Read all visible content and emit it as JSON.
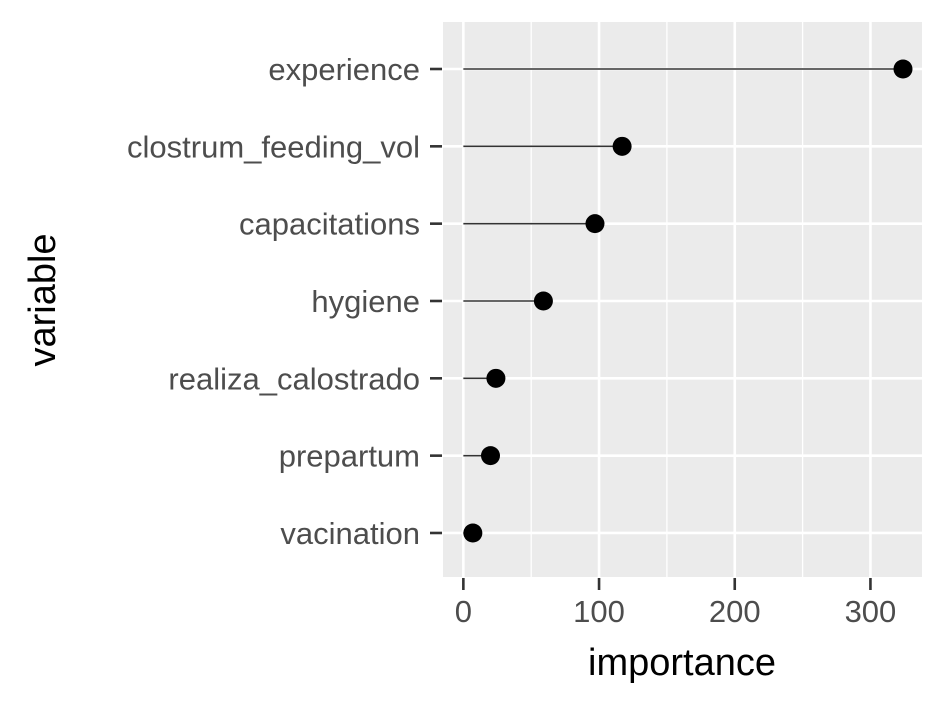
{
  "chart_data": {
    "type": "lollipop",
    "categories": [
      "experience",
      "clostrum_feeding_vol",
      "capacitations",
      "hygiene",
      "realiza_calostrado",
      "prepartum",
      "vacination"
    ],
    "values": [
      324,
      117,
      97,
      59,
      24,
      20,
      7
    ],
    "xlabel": "importance",
    "ylabel": "variable",
    "xlim": [
      -15,
      338
    ],
    "x_ticks": [
      0,
      100,
      200,
      300
    ],
    "x_minor_ticks": [
      50,
      150,
      250
    ],
    "grid": true,
    "panel_background": "#ebebeb",
    "grid_color": "#ffffff",
    "point_color": "#000000",
    "segment_color": "#333333",
    "tick_label_color": "#4d4d4d"
  }
}
